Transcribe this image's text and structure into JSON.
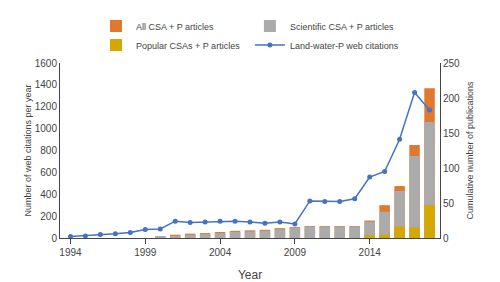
{
  "chart_data": {
    "type": "bar",
    "x_label": "Year",
    "y_label": "Number of web citations per year",
    "y2_label": "Cumulative number of publications",
    "x": [
      1994,
      1995,
      1996,
      1997,
      1998,
      1999,
      2000,
      2001,
      2002,
      2003,
      2004,
      2005,
      2006,
      2007,
      2008,
      2009,
      2010,
      2011,
      2012,
      2013,
      2014,
      2015,
      2016,
      2017,
      2018
    ],
    "series": [
      {
        "name": "All CSA + P articles",
        "color": "#E07830",
        "values": [
          0,
          0,
          0,
          0,
          0,
          0,
          15,
          30,
          40,
          45,
          55,
          65,
          70,
          75,
          90,
          100,
          110,
          110,
          110,
          110,
          160,
          300,
          475,
          850,
          1370
        ]
      },
      {
        "name": "Scientific CSA + P articles",
        "color": "#ABABAB",
        "values": [
          0,
          0,
          0,
          0,
          0,
          0,
          10,
          20,
          30,
          35,
          45,
          55,
          60,
          65,
          80,
          95,
          105,
          105,
          105,
          105,
          150,
          240,
          430,
          750,
          1060
        ]
      },
      {
        "name": "Popular CSAs + P articles",
        "color": "#D4A800",
        "values": [
          0,
          0,
          0,
          0,
          0,
          0,
          0,
          0,
          0,
          0,
          0,
          0,
          0,
          0,
          0,
          0,
          0,
          0,
          0,
          0,
          25,
          30,
          105,
          95,
          300
        ]
      },
      {
        "name": "Land-water-P web citations",
        "color": "#4472C4",
        "type": "line",
        "marker": "circle",
        "axis": "y2",
        "values": [
          2,
          3,
          5,
          6,
          8,
          12,
          13,
          24,
          22,
          23,
          24,
          24,
          23,
          21,
          23,
          20,
          53,
          52,
          52,
          56,
          87,
          95,
          141,
          208,
          183
        ]
      }
    ],
    "xlim": [
      1993.3,
      2018.7
    ],
    "xticks": [
      1994,
      1999,
      2004,
      2009,
      2014
    ],
    "ylim": [
      0,
      1600
    ],
    "yticks": [
      0,
      200,
      400,
      600,
      800,
      1000,
      1200,
      1400,
      1600
    ],
    "y2lim": [
      0,
      250
    ],
    "y2ticks": [
      0,
      50,
      100,
      150,
      200,
      250
    ],
    "stacked": false,
    "grid": false,
    "legend": "top"
  }
}
